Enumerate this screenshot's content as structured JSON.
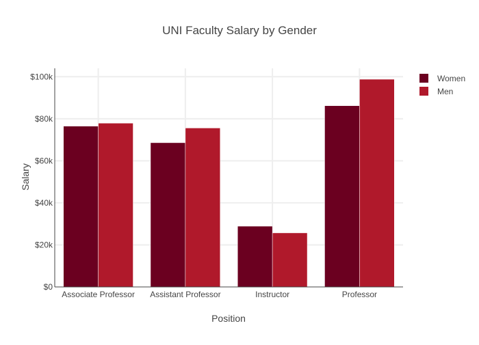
{
  "chart_data": {
    "type": "bar",
    "title": "UNI Faculty Salary by Gender",
    "xlabel": "Position",
    "ylabel": "Salary",
    "categories": [
      "Associate Professor",
      "Assistant Professor",
      "Instructor",
      "Professor"
    ],
    "series": [
      {
        "name": "Women",
        "color": "#6b0020",
        "values": [
          76500,
          68600,
          28900,
          86200
        ]
      },
      {
        "name": "Men",
        "color": "#b0192b",
        "values": [
          77900,
          75600,
          25700,
          98800
        ]
      }
    ],
    "ylim": [
      0,
      104000
    ],
    "yticks": [
      0,
      20000,
      40000,
      60000,
      80000,
      100000
    ],
    "ytick_labels": [
      "$0",
      "$20k",
      "$40k",
      "$60k",
      "$80k",
      "$100k"
    ],
    "grid": true,
    "legend_position": "top-right"
  }
}
